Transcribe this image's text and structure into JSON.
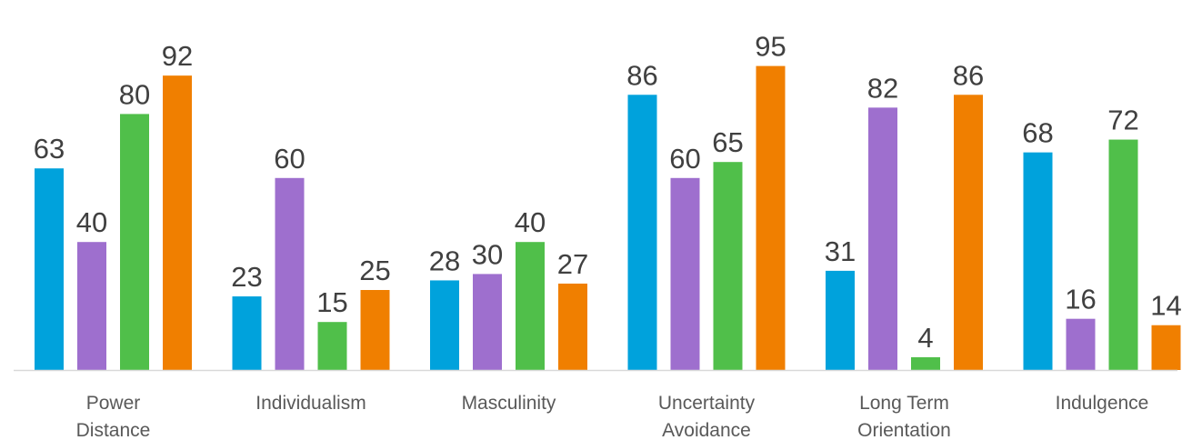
{
  "chart_data": {
    "type": "bar",
    "title": "",
    "xlabel": "",
    "ylabel": "",
    "ylim": [
      0,
      100
    ],
    "grid": false,
    "legend": "none",
    "categories": [
      [
        "Power",
        "Distance"
      ],
      [
        "Individualism"
      ],
      [
        "Masculinity"
      ],
      [
        "Uncertainty",
        "Avoidance"
      ],
      [
        "Long Term",
        "Orientation"
      ],
      [
        "Indulgence"
      ]
    ],
    "series": [
      {
        "color": "#00A2DC",
        "values": [
          63,
          23,
          28,
          86,
          31,
          68
        ]
      },
      {
        "color": "#9E6FCE",
        "values": [
          40,
          60,
          30,
          60,
          82,
          16
        ]
      },
      {
        "color": "#50BF4A",
        "values": [
          80,
          15,
          40,
          65,
          4,
          72
        ]
      },
      {
        "color": "#F07F00",
        "values": [
          92,
          25,
          27,
          95,
          86,
          14
        ]
      }
    ],
    "data_labels": true,
    "axis_color": "#D9D9D9"
  }
}
